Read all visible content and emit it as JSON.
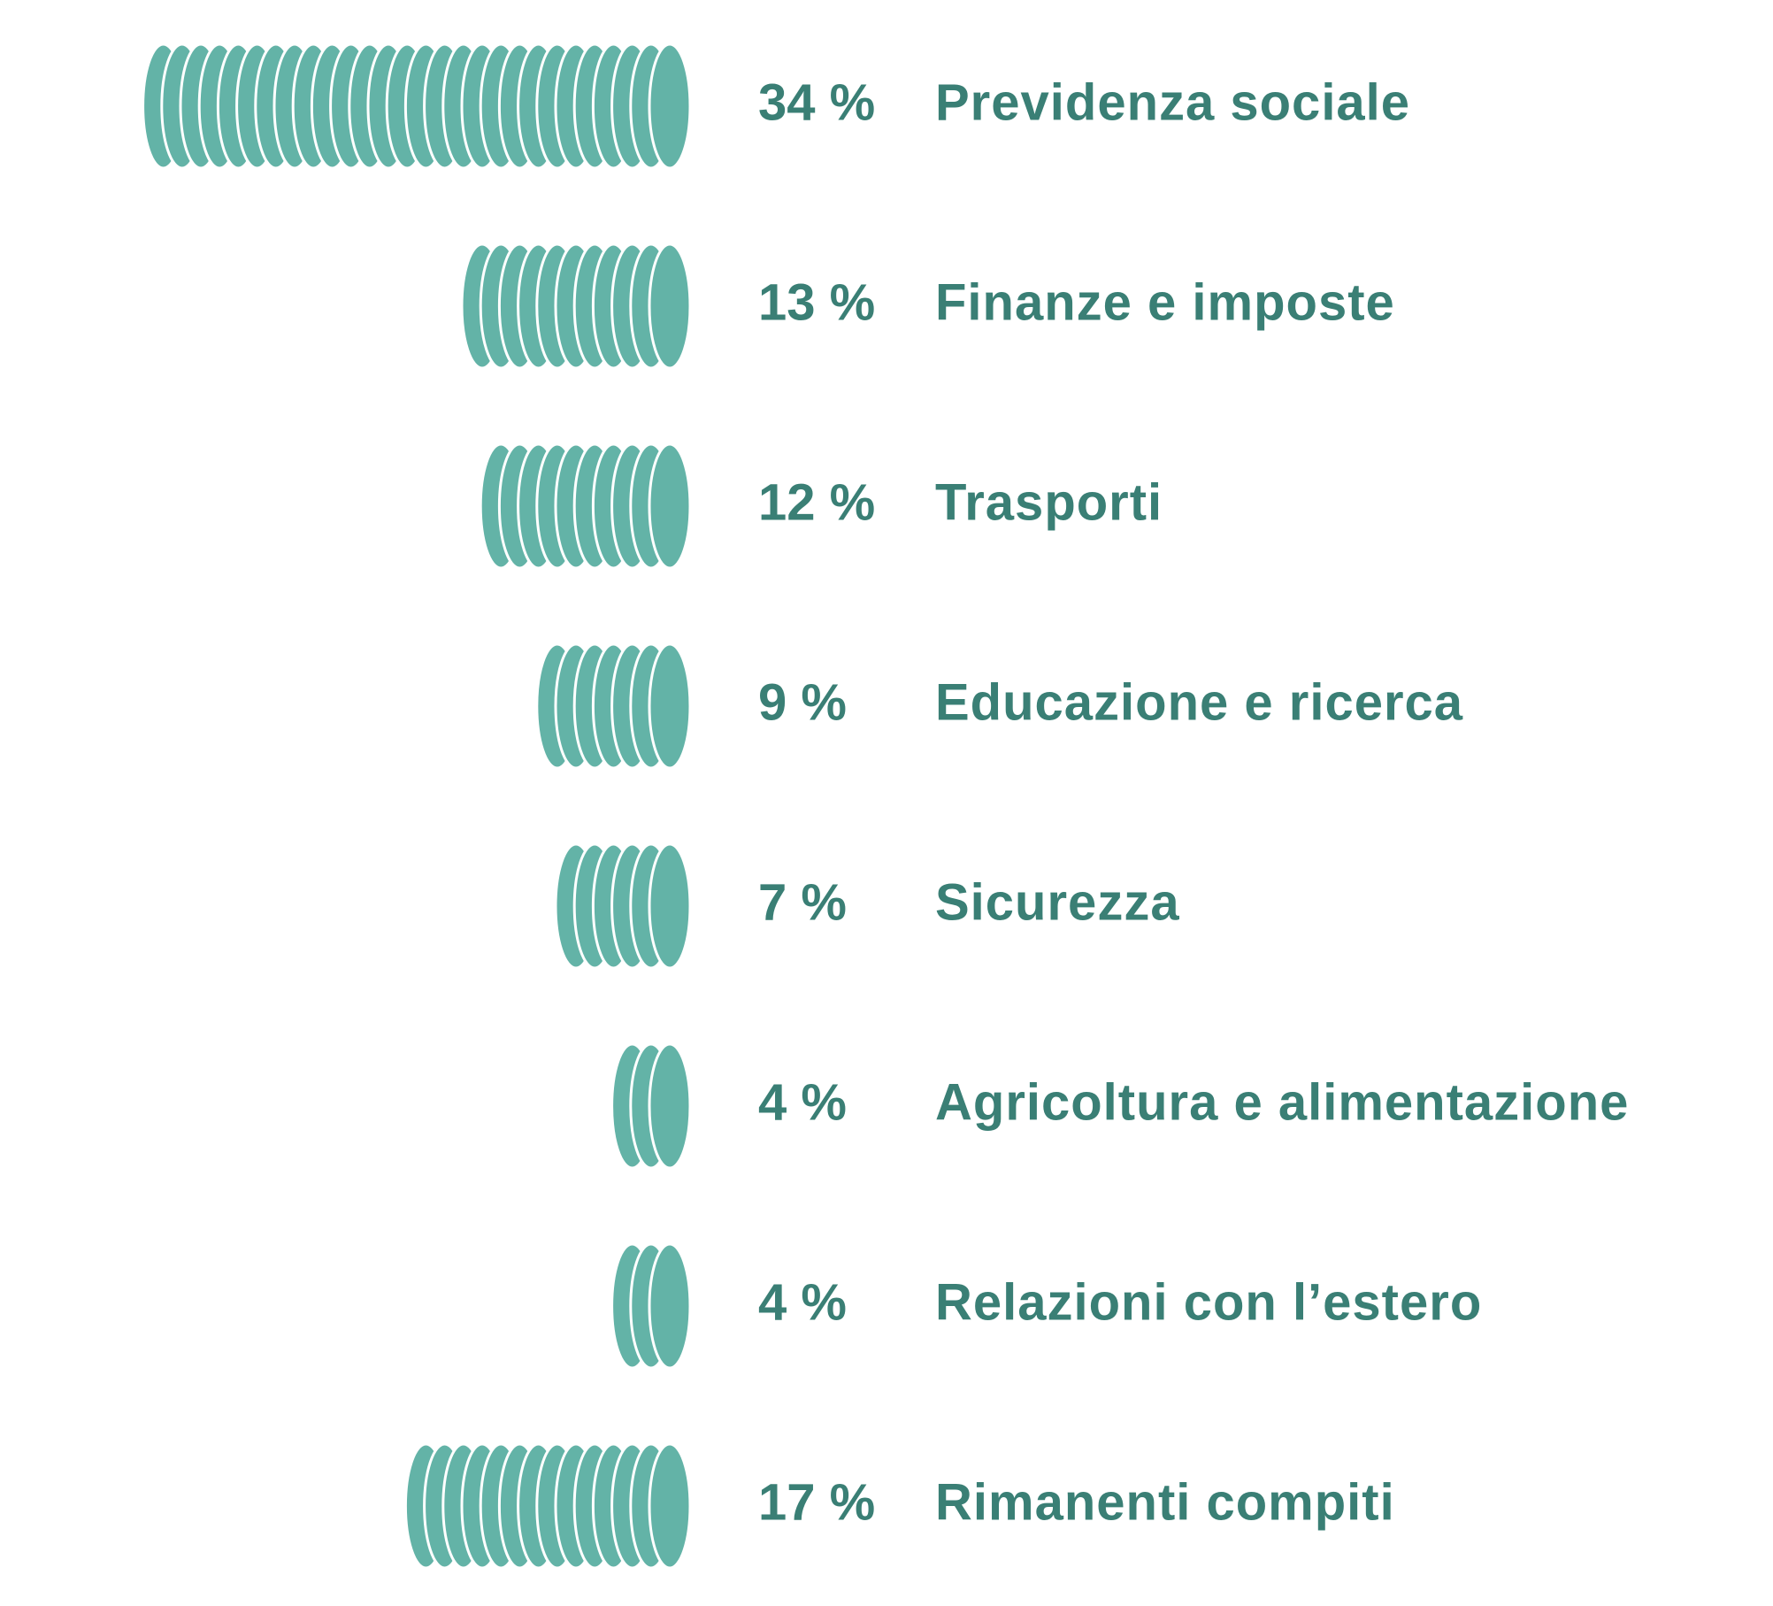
{
  "chart_data": {
    "type": "bar",
    "orientation": "horizontal",
    "bar_style": "stacked coins",
    "value_unit": "%",
    "categories": [
      "Previdenza sociale",
      "Finanze e imposte",
      "Trasporti",
      "Educazione e ricerca",
      "Sicurezza",
      "Agricoltura e alimentazione",
      "Relazioni con l’estero",
      "Rimanenti compiti"
    ],
    "values": [
      34,
      13,
      12,
      9,
      7,
      4,
      4,
      17
    ],
    "value_labels": [
      "34 %",
      "13 %",
      "12 %",
      "9 %",
      "7 %",
      "4 %",
      "4 %",
      "17 %"
    ],
    "title": "",
    "xlabel": "",
    "ylabel": "",
    "grid": false,
    "legend": "none"
  },
  "colors": {
    "coin_fill": "#63b3a7",
    "coin_edge": "#ffffff",
    "text": "#3a7f75",
    "background": "#ffffff"
  }
}
